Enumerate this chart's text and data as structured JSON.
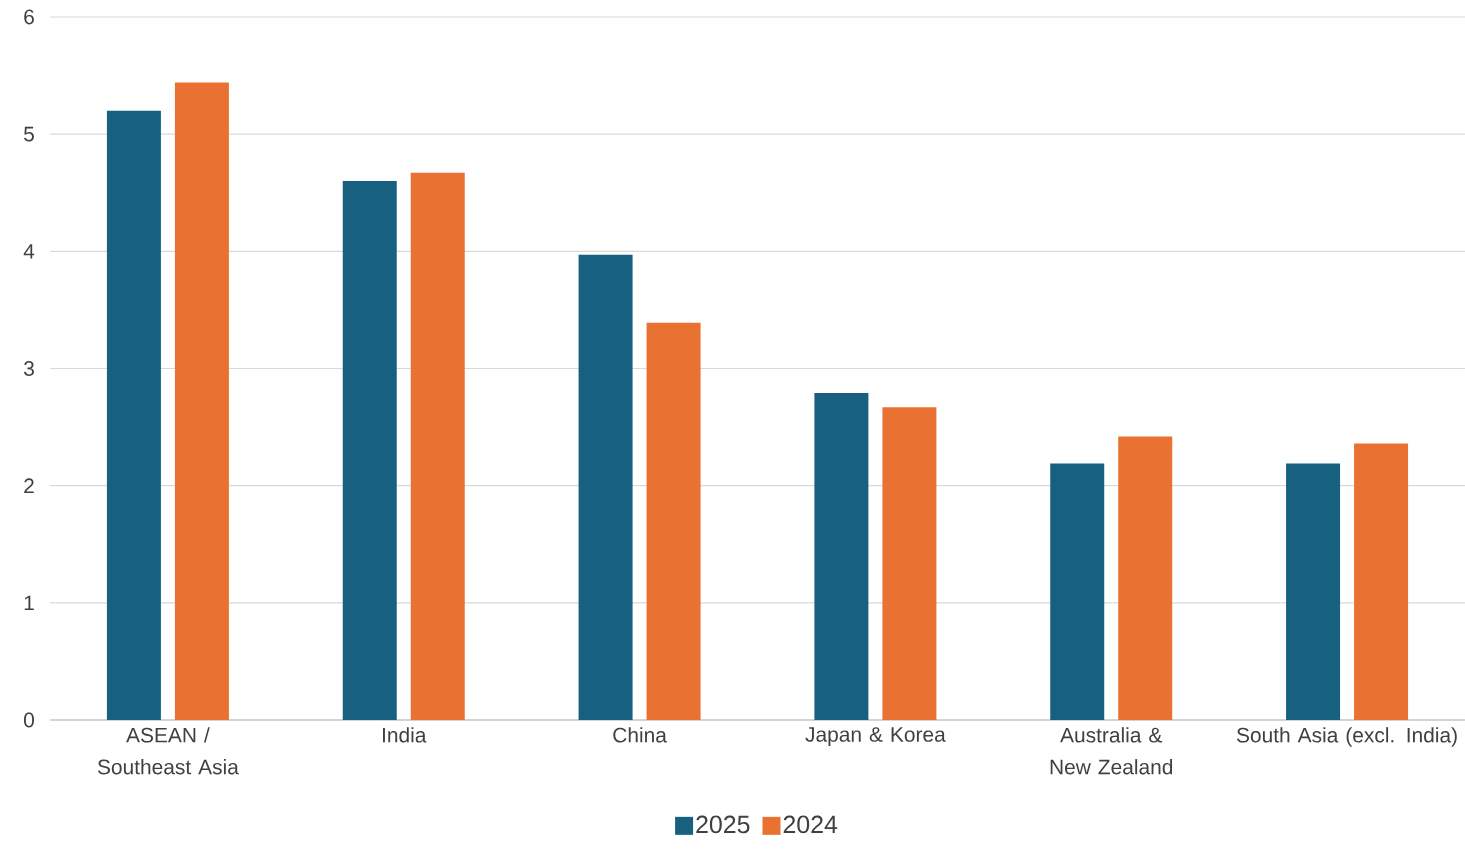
{
  "chart_data": {
    "type": "bar",
    "categories": [
      "ASEAN / Southeast Asia",
      "India",
      "China",
      "Japan & Korea",
      "Australia & New Zealand",
      "South Asia (excl. India)"
    ],
    "series": [
      {
        "name": "2025",
        "color": "#17607f",
        "values": [
          5.2,
          4.6,
          3.97,
          2.79,
          2.19,
          2.19
        ]
      },
      {
        "name": "2024",
        "color": "#e97132",
        "values": [
          5.44,
          4.67,
          3.39,
          2.67,
          2.42,
          2.36
        ]
      }
    ],
    "ylim": [
      0,
      6
    ],
    "yticks": [
      0,
      1,
      2,
      3,
      4,
      5,
      6
    ],
    "grid": "y",
    "legend": "bottom"
  }
}
